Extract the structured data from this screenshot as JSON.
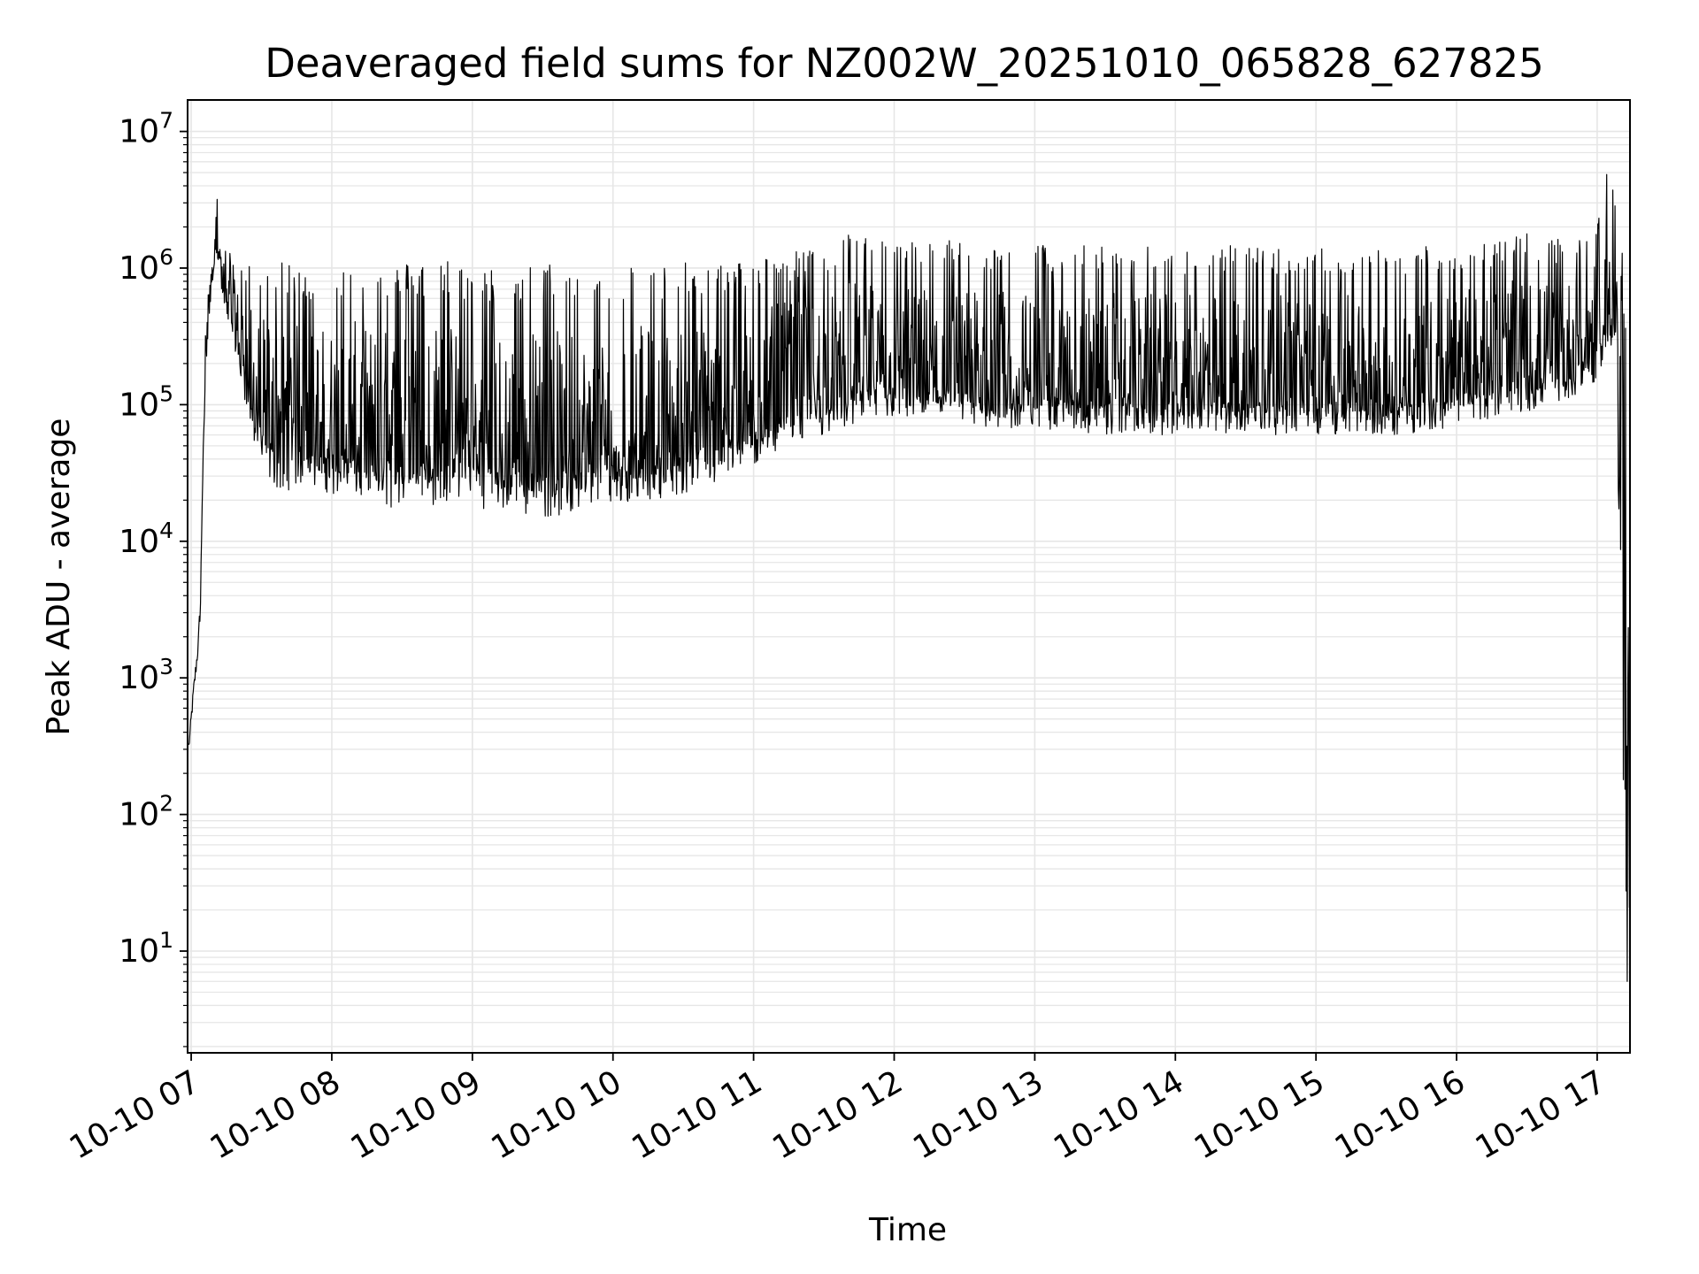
{
  "chart_data": {
    "type": "line",
    "title": "Deaveraged field sums for NZ002W_20251010_065828_627825",
    "xlabel": "Time",
    "ylabel": "Peak ADU - average",
    "x_ticks": [
      "10-10 07",
      "10-10 08",
      "10-10 09",
      "10-10 10",
      "10-10 11",
      "10-10 12",
      "10-10 13",
      "10-10 14",
      "10-10 15",
      "10-10 16",
      "10-10 17"
    ],
    "x_range": [
      "2025-10-10 06:58:28",
      "2025-10-10 17:14:00"
    ],
    "y_scale": "log",
    "y_ticks": [
      {
        "base": "10",
        "exp": "1",
        "value": 10
      },
      {
        "base": "10",
        "exp": "2",
        "value": 100
      },
      {
        "base": "10",
        "exp": "3",
        "value": 1000
      },
      {
        "base": "10",
        "exp": "4",
        "value": 10000
      },
      {
        "base": "10",
        "exp": "5",
        "value": 100000
      },
      {
        "base": "10",
        "exp": "6",
        "value": 1000000
      },
      {
        "base": "10",
        "exp": "7",
        "value": 10000000
      }
    ],
    "ylim": [
      1.8,
      17000000
    ],
    "grid": true,
    "line_color": "#000000",
    "grid_color": "#e6e6e6",
    "series": [
      {
        "x": [
          "2025-10-10 06:59",
          "2025-10-10 07:01",
          "2025-10-10 07:03",
          "2025-10-10 07:04",
          "2025-10-10 07:05",
          "2025-10-10 07:06",
          "2025-10-10 07:08",
          "2025-10-10 07:10",
          "2025-10-10 07:11",
          "2025-10-10 07:12",
          "2025-10-10 07:15",
          "2025-10-10 07:18",
          "2025-10-10 07:21",
          "2025-10-10 07:24",
          "2025-10-10 07:27",
          "2025-10-10 07:30",
          "2025-10-10 07:33",
          "2025-10-10 07:36",
          "2025-10-10 07:39",
          "2025-10-10 07:42",
          "2025-10-10 07:45",
          "2025-10-10 07:50",
          "2025-10-10 07:55",
          "2025-10-10 08:00",
          "2025-10-10 08:10",
          "2025-10-10 08:20",
          "2025-10-10 08:30",
          "2025-10-10 08:40",
          "2025-10-10 08:50",
          "2025-10-10 09:00",
          "2025-10-10 09:15",
          "2025-10-10 09:30",
          "2025-10-10 09:45",
          "2025-10-10 10:00",
          "2025-10-10 10:15",
          "2025-10-10 10:30",
          "2025-10-10 10:45",
          "2025-10-10 11:00",
          "2025-10-10 11:15",
          "2025-10-10 11:30",
          "2025-10-10 11:45",
          "2025-10-10 12:00",
          "2025-10-10 12:15",
          "2025-10-10 12:30",
          "2025-10-10 12:45",
          "2025-10-10 13:00",
          "2025-10-10 13:30",
          "2025-10-10 14:00",
          "2025-10-10 14:30",
          "2025-10-10 15:00",
          "2025-10-10 15:30",
          "2025-10-10 15:45",
          "2025-10-10 16:00",
          "2025-10-10 16:15",
          "2025-10-10 16:30",
          "2025-10-10 16:45",
          "2025-10-10 17:00",
          "2025-10-10 17:02",
          "2025-10-10 17:05",
          "2025-10-10 17:08",
          "2025-10-10 17:10",
          "2025-10-10 17:11",
          "2025-10-10 17:12",
          "2025-10-10 17:13",
          "2025-10-10 17:14"
        ],
        "low": [
          280,
          700,
          1500,
          3000,
          30000,
          150000,
          500000,
          900000,
          1200000,
          900000,
          400000,
          300000,
          150000,
          90000,
          50000,
          35000,
          28000,
          25000,
          22000,
          24000,
          26000,
          25000,
          24000,
          22000,
          21000,
          18000,
          17000,
          17500,
          19000,
          18000,
          16000,
          15000,
          15500,
          18000,
          20000,
          22000,
          26000,
          35000,
          50000,
          60000,
          70000,
          80000,
          75000,
          70000,
          65000,
          65000,
          60000,
          60000,
          60000,
          60000,
          60000,
          60000,
          70000,
          80000,
          90000,
          100000,
          150000,
          200000,
          250000,
          300000,
          1000,
          200,
          10,
          4,
          3.5
        ],
        "high": [
          350,
          900,
          2000,
          4500,
          80000,
          400000,
          1000000,
          1500000,
          3800000,
          1500000,
          1400000,
          1200000,
          1100000,
          1100000,
          1000000,
          1000000,
          1050000,
          1050000,
          1100000,
          1050000,
          1000000,
          1000000,
          1000000,
          1000000,
          1100000,
          1050000,
          1100000,
          1150000,
          1200000,
          1000000,
          1000000,
          1100000,
          1050000,
          1100000,
          1050000,
          1100000,
          1100000,
          1200000,
          1300000,
          1500000,
          2000000,
          1500000,
          1700000,
          1600000,
          1500000,
          1500000,
          1500000,
          1400000,
          1500000,
          1400000,
          1400000,
          1500000,
          1500000,
          1600000,
          1800000,
          1600000,
          2000000,
          3000000,
          8000000,
          3000000,
          2500000,
          1000000,
          900000,
          5000,
          4000
        ]
      }
    ]
  }
}
